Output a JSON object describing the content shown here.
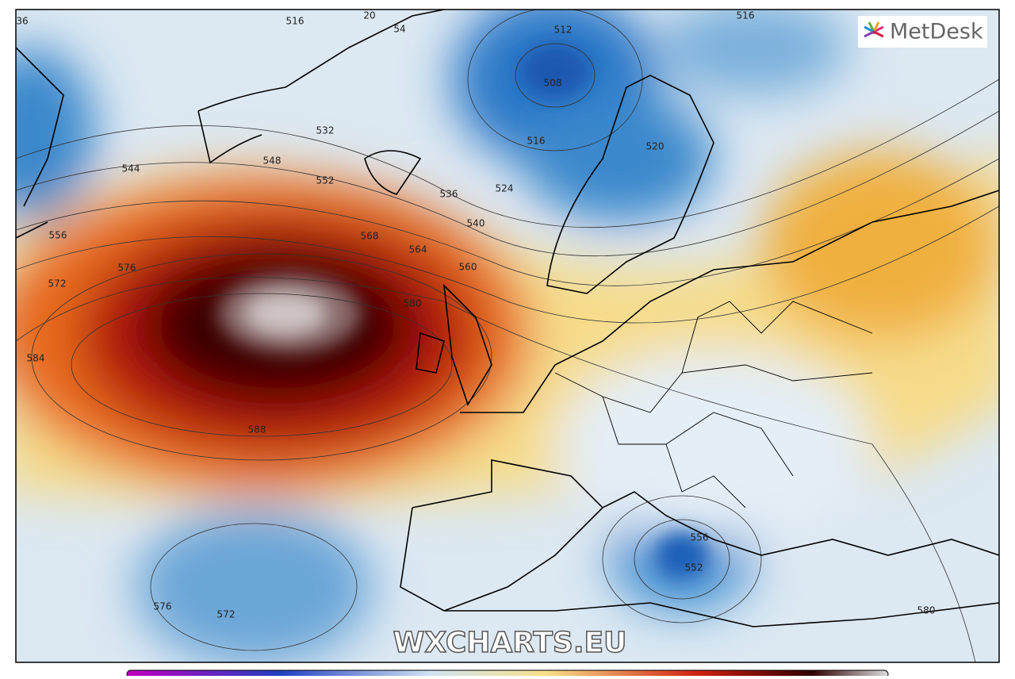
{
  "logo": "MetDesk",
  "watermark": "WXCHARTS.EU",
  "contour_labels": [
    "512",
    "508",
    "516",
    "520",
    "524",
    "532",
    "536",
    "540",
    "544",
    "548",
    "552",
    "556",
    "560",
    "564",
    "568",
    "572",
    "576",
    "580",
    "584",
    "588",
    "576",
    "572",
    "580",
    "556",
    "552",
    "516",
    "516",
    "36",
    "20",
    "54"
  ]
}
